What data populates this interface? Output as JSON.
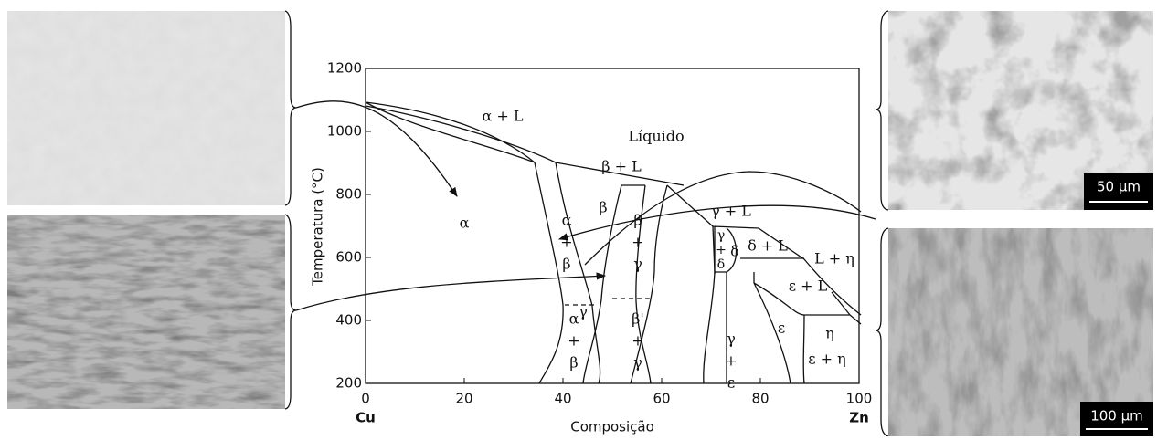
{
  "diagram": {
    "y_axis": {
      "label": "Temperatura (°C)",
      "lim": [
        200,
        1200
      ],
      "ticks": [
        200,
        400,
        600,
        800,
        1000,
        1200
      ]
    },
    "x_axis": {
      "label": "Composição",
      "lim": [
        0,
        100
      ],
      "ticks": [
        0,
        20,
        40,
        60,
        80,
        100
      ],
      "left_end": "Cu",
      "right_end": "Zn"
    },
    "phase_labels": [
      [
        "α + L"
      ],
      [
        "Líquido"
      ],
      [
        "β + L"
      ],
      [
        "α"
      ],
      [
        "β"
      ],
      [
        "α",
        "+",
        "β"
      ],
      [
        "β",
        "+",
        "γ"
      ],
      [
        "γ + L"
      ],
      [
        "γ",
        "+",
        "δ"
      ],
      [
        "δ"
      ],
      [
        "δ + L"
      ],
      [
        "L + η"
      ],
      [
        "γ"
      ],
      [
        "ε + L"
      ],
      [
        "α",
        "+",
        "β"
      ],
      [
        "β'",
        "+",
        "γ"
      ],
      [
        "γ",
        "+",
        "ε"
      ],
      [
        "ε"
      ],
      [
        "η"
      ],
      [
        "ε + η"
      ]
    ],
    "scale_bars": [
      "50 µm",
      "100 µm"
    ]
  }
}
